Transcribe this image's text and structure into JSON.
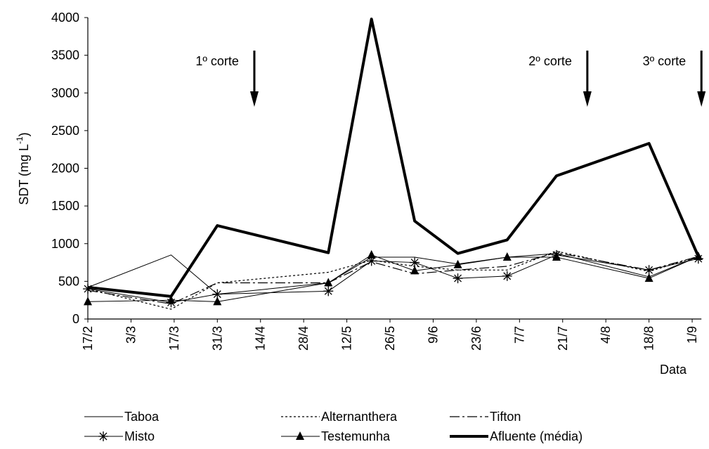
{
  "chart_data": {
    "type": "line",
    "ylabel": [
      "SDT (mg L",
      "-1",
      ")"
    ],
    "xlabel": "Data",
    "x": [
      "17/2",
      "16/3",
      "31/3",
      "6/5",
      "20/5",
      "3/6",
      "17/6",
      "3/7",
      "19/7",
      "18/8",
      "3/9"
    ],
    "xlim": [
      "17/2",
      "4/9"
    ],
    "xticks": [
      "17/2",
      "3/3",
      "17/3",
      "31/3",
      "14/4",
      "28/4",
      "12/5",
      "26/5",
      "9/6",
      "23/6",
      "7/7",
      "21/7",
      "4/8",
      "18/8",
      "1/9"
    ],
    "ylim": [
      0,
      4000
    ],
    "yticks": [
      0,
      500,
      1000,
      1500,
      2000,
      2500,
      3000,
      3500,
      4000
    ],
    "series": [
      {
        "name": "Taboa",
        "color": "#000000",
        "width": 1,
        "dash": "solid",
        "marker": "none",
        "values": [
          420,
          850,
          330,
          480,
          820,
          820,
          730,
          820,
          870,
          560,
          830
        ]
      },
      {
        "name": "Alternanthera",
        "color": "#000000",
        "width": 1.2,
        "dash": "dotted",
        "marker": "none",
        "values": [
          400,
          130,
          480,
          620,
          780,
          700,
          650,
          650,
          900,
          630,
          830
        ]
      },
      {
        "name": "Tifton",
        "color": "#000000",
        "width": 1.2,
        "dash": "dashdot",
        "marker": "none",
        "values": [
          380,
          200,
          480,
          480,
          760,
          600,
          650,
          700,
          880,
          650,
          830
        ]
      },
      {
        "name": "Misto",
        "color": "#000000",
        "width": 1,
        "dash": "solid",
        "marker": "star",
        "values": [
          400,
          220,
          330,
          370,
          770,
          750,
          540,
          570,
          850,
          650,
          800
        ]
      },
      {
        "name": "Testemunha",
        "color": "#000000",
        "width": 1,
        "dash": "solid",
        "marker": "triangle",
        "values": [
          230,
          250,
          230,
          480,
          850,
          640,
          720,
          820,
          820,
          540,
          830
        ]
      },
      {
        "name": "Afluente (média)",
        "color": "#000000",
        "width": 4,
        "dash": "solid",
        "marker": "none",
        "values": [
          420,
          300,
          1240,
          880,
          3980,
          1300,
          870,
          1050,
          1900,
          2330,
          830
        ]
      }
    ],
    "annotations": [
      {
        "text": "1º corte",
        "x": "12/4"
      },
      {
        "text": "2º corte",
        "x": "29/7"
      },
      {
        "text": "3º corte",
        "x": "4/9"
      }
    ]
  }
}
